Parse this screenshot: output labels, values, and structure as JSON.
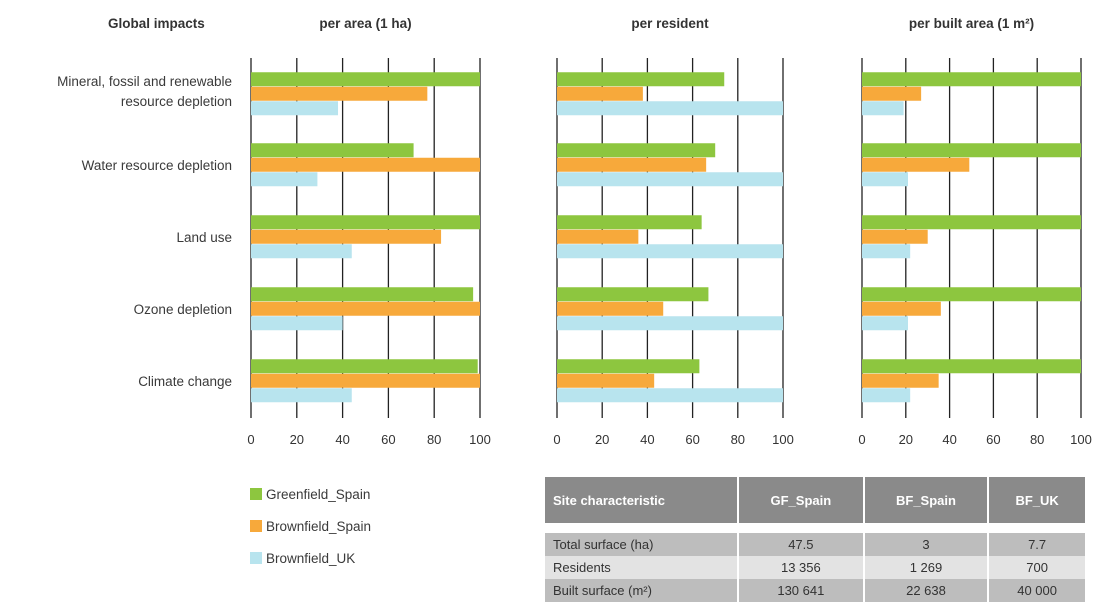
{
  "header": {
    "impacts_title": "Global impacts"
  },
  "colors": {
    "greenfield_spain": "#8dc63f",
    "brownfield_spain": "#f7a93b",
    "brownfield_uk": "#b8e4ee",
    "gridline": "#222222"
  },
  "chart_data": [
    {
      "type": "bar",
      "orientation": "horizontal",
      "title": "per area (1 ha)",
      "categories": [
        "Mineral, fossil and renewable resource depletion",
        "Water resource depletion",
        "Land use",
        "Ozone depletion",
        "Climate change"
      ],
      "series": [
        {
          "name": "Greenfield_Spain",
          "values": [
            100,
            71,
            100,
            97,
            99
          ]
        },
        {
          "name": "Brownfield_Spain",
          "values": [
            77,
            100,
            83,
            100,
            100
          ]
        },
        {
          "name": "Brownfield_UK",
          "values": [
            38,
            29,
            44,
            40,
            44
          ]
        }
      ],
      "xlim": [
        0,
        100
      ],
      "xticks": [
        "0",
        "20",
        "40",
        "60",
        "80",
        "100"
      ],
      "grid": true
    },
    {
      "type": "bar",
      "orientation": "horizontal",
      "title": "per resident",
      "categories": [
        "Mineral, fossil and renewable resource depletion",
        "Water resource depletion",
        "Land use",
        "Ozone depletion",
        "Climate change"
      ],
      "series": [
        {
          "name": "Greenfield_Spain",
          "values": [
            74,
            70,
            64,
            67,
            63
          ]
        },
        {
          "name": "Brownfield_Spain",
          "values": [
            38,
            66,
            36,
            47,
            43
          ]
        },
        {
          "name": "Brownfield_UK",
          "values": [
            100,
            100,
            100,
            100,
            100
          ]
        }
      ],
      "xlim": [
        0,
        100
      ],
      "xticks": [
        "0",
        "20",
        "40",
        "60",
        "80",
        "100"
      ],
      "grid": true
    },
    {
      "type": "bar",
      "orientation": "horizontal",
      "title": "per built area (1 m²)",
      "categories": [
        "Mineral, fossil and renewable resource depletion",
        "Water resource depletion",
        "Land use",
        "Ozone depletion",
        "Climate change"
      ],
      "series": [
        {
          "name": "Greenfield_Spain",
          "values": [
            100,
            100,
            100,
            100,
            100
          ]
        },
        {
          "name": "Brownfield_Spain",
          "values": [
            27,
            49,
            30,
            36,
            35
          ]
        },
        {
          "name": "Brownfield_UK",
          "values": [
            19,
            21,
            22,
            21,
            22
          ]
        }
      ],
      "xlim": [
        0,
        100
      ],
      "xticks": [
        "0",
        "20",
        "40",
        "60",
        "80",
        "100"
      ],
      "grid": true
    }
  ],
  "legend": [
    {
      "label": "Greenfield_Spain",
      "color": "#8dc63f"
    },
    {
      "label": "Brownfield_Spain",
      "color": "#f7a93b"
    },
    {
      "label": "Brownfield_UK",
      "color": "#b8e4ee"
    }
  ],
  "site_table": {
    "headers": [
      "Site characteristic",
      "GF_Spain",
      "BF_Spain",
      "BF_UK"
    ],
    "rows": [
      [
        "Total surface (ha)",
        "47.5",
        "3",
        "7.7"
      ],
      [
        "Residents",
        "13 356",
        "1 269",
        "700"
      ],
      [
        "Built surface (m²)",
        "130 641",
        "22 638",
        "40 000"
      ]
    ]
  }
}
